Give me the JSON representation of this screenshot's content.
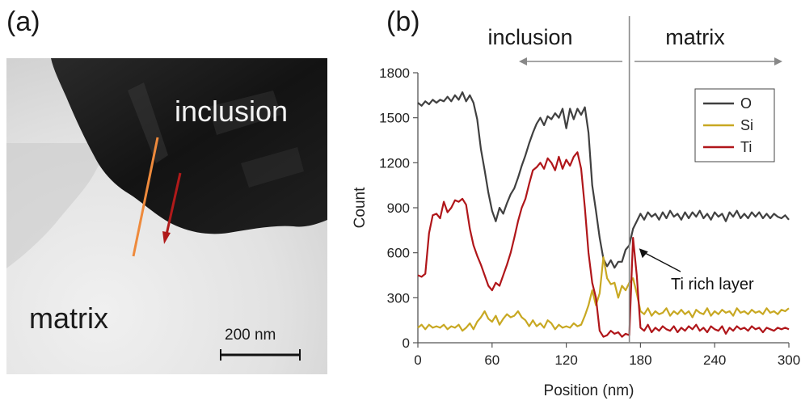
{
  "panels": {
    "a_label": "(a)",
    "b_label": "(b)"
  },
  "micrograph": {
    "inclusion_label": "inclusion",
    "matrix_label": "matrix",
    "scalebar_label": "200 nm",
    "colors": {
      "inclusion": "#161616",
      "matrix": "#e4e4e4",
      "orange_line": "#ee8a3c",
      "red_arrow": "#b01a1a"
    }
  },
  "chart_data": {
    "type": "line",
    "xlabel": "Position (nm)",
    "ylabel": "Count",
    "xlim": [
      0,
      300
    ],
    "ylim": [
      0,
      1800
    ],
    "x_ticks": [
      0,
      60,
      120,
      180,
      240,
      300
    ],
    "y_ticks": [
      0,
      300,
      600,
      900,
      1200,
      1500,
      1800
    ],
    "grid": false,
    "legend_position": "top-right",
    "boundary_x": 171,
    "region_labels": {
      "left": "inclusion",
      "right": "matrix"
    },
    "annotation": {
      "text": "Ti rich layer",
      "x": 175,
      "y": 640
    },
    "series": [
      {
        "name": "O",
        "color": "#404040",
        "points": [
          [
            0,
            1600
          ],
          [
            3,
            1580
          ],
          [
            6,
            1610
          ],
          [
            9,
            1590
          ],
          [
            12,
            1620
          ],
          [
            15,
            1600
          ],
          [
            18,
            1620
          ],
          [
            21,
            1610
          ],
          [
            24,
            1640
          ],
          [
            27,
            1610
          ],
          [
            30,
            1650
          ],
          [
            33,
            1620
          ],
          [
            36,
            1670
          ],
          [
            39,
            1610
          ],
          [
            42,
            1650
          ],
          [
            45,
            1600
          ],
          [
            48,
            1490
          ],
          [
            51,
            1290
          ],
          [
            54,
            1150
          ],
          [
            57,
            1000
          ],
          [
            60,
            880
          ],
          [
            63,
            810
          ],
          [
            66,
            900
          ],
          [
            69,
            860
          ],
          [
            72,
            930
          ],
          [
            75,
            990
          ],
          [
            78,
            1030
          ],
          [
            81,
            1100
          ],
          [
            84,
            1180
          ],
          [
            87,
            1250
          ],
          [
            90,
            1330
          ],
          [
            93,
            1400
          ],
          [
            96,
            1460
          ],
          [
            99,
            1500
          ],
          [
            102,
            1450
          ],
          [
            105,
            1510
          ],
          [
            108,
            1490
          ],
          [
            111,
            1530
          ],
          [
            114,
            1500
          ],
          [
            117,
            1560
          ],
          [
            120,
            1430
          ],
          [
            123,
            1560
          ],
          [
            126,
            1490
          ],
          [
            129,
            1560
          ],
          [
            132,
            1520
          ],
          [
            135,
            1570
          ],
          [
            138,
            1400
          ],
          [
            141,
            1050
          ],
          [
            144,
            880
          ],
          [
            147,
            700
          ],
          [
            150,
            560
          ],
          [
            153,
            510
          ],
          [
            156,
            550
          ],
          [
            159,
            500
          ],
          [
            162,
            540
          ],
          [
            165,
            540
          ],
          [
            168,
            620
          ],
          [
            171,
            650
          ],
          [
            174,
            760
          ],
          [
            177,
            810
          ],
          [
            180,
            860
          ],
          [
            183,
            820
          ],
          [
            186,
            870
          ],
          [
            189,
            840
          ],
          [
            192,
            860
          ],
          [
            195,
            820
          ],
          [
            198,
            870
          ],
          [
            201,
            830
          ],
          [
            204,
            880
          ],
          [
            207,
            840
          ],
          [
            210,
            860
          ],
          [
            213,
            820
          ],
          [
            216,
            870
          ],
          [
            219,
            830
          ],
          [
            222,
            870
          ],
          [
            225,
            840
          ],
          [
            228,
            880
          ],
          [
            231,
            830
          ],
          [
            234,
            860
          ],
          [
            237,
            820
          ],
          [
            240,
            870
          ],
          [
            243,
            840
          ],
          [
            246,
            860
          ],
          [
            249,
            810
          ],
          [
            252,
            870
          ],
          [
            255,
            840
          ],
          [
            258,
            880
          ],
          [
            261,
            830
          ],
          [
            264,
            860
          ],
          [
            267,
            830
          ],
          [
            270,
            870
          ],
          [
            273,
            840
          ],
          [
            276,
            870
          ],
          [
            279,
            830
          ],
          [
            282,
            860
          ],
          [
            285,
            830
          ],
          [
            288,
            860
          ],
          [
            291,
            840
          ],
          [
            294,
            830
          ],
          [
            297,
            850
          ],
          [
            300,
            820
          ]
        ]
      },
      {
        "name": "Si",
        "color": "#c8a822",
        "points": [
          [
            0,
            100
          ],
          [
            3,
            120
          ],
          [
            6,
            90
          ],
          [
            9,
            120
          ],
          [
            12,
            100
          ],
          [
            15,
            110
          ],
          [
            18,
            100
          ],
          [
            21,
            120
          ],
          [
            24,
            90
          ],
          [
            27,
            110
          ],
          [
            30,
            100
          ],
          [
            33,
            120
          ],
          [
            36,
            80
          ],
          [
            39,
            100
          ],
          [
            42,
            130
          ],
          [
            45,
            90
          ],
          [
            48,
            140
          ],
          [
            51,
            170
          ],
          [
            54,
            210
          ],
          [
            57,
            160
          ],
          [
            60,
            140
          ],
          [
            63,
            180
          ],
          [
            66,
            120
          ],
          [
            69,
            160
          ],
          [
            72,
            190
          ],
          [
            75,
            170
          ],
          [
            78,
            180
          ],
          [
            81,
            210
          ],
          [
            84,
            170
          ],
          [
            87,
            150
          ],
          [
            90,
            110
          ],
          [
            93,
            150
          ],
          [
            96,
            110
          ],
          [
            99,
            130
          ],
          [
            102,
            100
          ],
          [
            105,
            150
          ],
          [
            108,
            130
          ],
          [
            111,
            90
          ],
          [
            114,
            120
          ],
          [
            117,
            100
          ],
          [
            120,
            110
          ],
          [
            123,
            100
          ],
          [
            126,
            130
          ],
          [
            129,
            110
          ],
          [
            132,
            120
          ],
          [
            135,
            180
          ],
          [
            138,
            250
          ],
          [
            141,
            350
          ],
          [
            144,
            250
          ],
          [
            147,
            330
          ],
          [
            150,
            570
          ],
          [
            153,
            430
          ],
          [
            156,
            390
          ],
          [
            159,
            400
          ],
          [
            162,
            300
          ],
          [
            165,
            380
          ],
          [
            168,
            350
          ],
          [
            171,
            400
          ],
          [
            174,
            430
          ],
          [
            177,
            330
          ],
          [
            180,
            210
          ],
          [
            183,
            190
          ],
          [
            186,
            230
          ],
          [
            189,
            180
          ],
          [
            192,
            210
          ],
          [
            195,
            190
          ],
          [
            198,
            200
          ],
          [
            201,
            230
          ],
          [
            204,
            180
          ],
          [
            207,
            210
          ],
          [
            210,
            190
          ],
          [
            213,
            220
          ],
          [
            216,
            190
          ],
          [
            219,
            210
          ],
          [
            222,
            170
          ],
          [
            225,
            220
          ],
          [
            228,
            200
          ],
          [
            231,
            190
          ],
          [
            234,
            230
          ],
          [
            237,
            180
          ],
          [
            240,
            210
          ],
          [
            243,
            190
          ],
          [
            246,
            220
          ],
          [
            249,
            200
          ],
          [
            252,
            210
          ],
          [
            255,
            180
          ],
          [
            258,
            230
          ],
          [
            261,
            200
          ],
          [
            264,
            210
          ],
          [
            267,
            190
          ],
          [
            270,
            220
          ],
          [
            273,
            200
          ],
          [
            276,
            210
          ],
          [
            279,
            190
          ],
          [
            282,
            230
          ],
          [
            285,
            200
          ],
          [
            288,
            210
          ],
          [
            291,
            190
          ],
          [
            294,
            220
          ],
          [
            297,
            210
          ],
          [
            300,
            230
          ]
        ]
      },
      {
        "name": "Ti",
        "color": "#b0161a",
        "points": [
          [
            0,
            450
          ],
          [
            3,
            440
          ],
          [
            6,
            460
          ],
          [
            9,
            730
          ],
          [
            12,
            850
          ],
          [
            15,
            860
          ],
          [
            18,
            830
          ],
          [
            21,
            940
          ],
          [
            24,
            870
          ],
          [
            27,
            900
          ],
          [
            30,
            950
          ],
          [
            33,
            940
          ],
          [
            36,
            960
          ],
          [
            39,
            920
          ],
          [
            42,
            760
          ],
          [
            45,
            650
          ],
          [
            48,
            580
          ],
          [
            51,
            520
          ],
          [
            54,
            450
          ],
          [
            57,
            380
          ],
          [
            60,
            350
          ],
          [
            63,
            400
          ],
          [
            66,
            380
          ],
          [
            69,
            450
          ],
          [
            72,
            520
          ],
          [
            75,
            600
          ],
          [
            78,
            700
          ],
          [
            81,
            810
          ],
          [
            84,
            900
          ],
          [
            87,
            960
          ],
          [
            90,
            1060
          ],
          [
            93,
            1150
          ],
          [
            96,
            1170
          ],
          [
            99,
            1200
          ],
          [
            102,
            1160
          ],
          [
            105,
            1230
          ],
          [
            108,
            1200
          ],
          [
            111,
            1150
          ],
          [
            114,
            1240
          ],
          [
            117,
            1160
          ],
          [
            120,
            1220
          ],
          [
            123,
            1180
          ],
          [
            126,
            1240
          ],
          [
            129,
            1270
          ],
          [
            132,
            1160
          ],
          [
            135,
            900
          ],
          [
            138,
            600
          ],
          [
            141,
            400
          ],
          [
            144,
            300
          ],
          [
            147,
            80
          ],
          [
            150,
            40
          ],
          [
            153,
            50
          ],
          [
            156,
            80
          ],
          [
            159,
            60
          ],
          [
            162,
            70
          ],
          [
            165,
            40
          ],
          [
            168,
            60
          ],
          [
            171,
            50
          ],
          [
            174,
            700
          ],
          [
            177,
            450
          ],
          [
            180,
            100
          ],
          [
            183,
            80
          ],
          [
            186,
            120
          ],
          [
            189,
            70
          ],
          [
            192,
            100
          ],
          [
            195,
            80
          ],
          [
            198,
            110
          ],
          [
            201,
            90
          ],
          [
            204,
            80
          ],
          [
            207,
            110
          ],
          [
            210,
            70
          ],
          [
            213,
            100
          ],
          [
            216,
            80
          ],
          [
            219,
            110
          ],
          [
            222,
            90
          ],
          [
            225,
            120
          ],
          [
            228,
            80
          ],
          [
            231,
            100
          ],
          [
            234,
            70
          ],
          [
            237,
            110
          ],
          [
            240,
            90
          ],
          [
            243,
            80
          ],
          [
            246,
            110
          ],
          [
            249,
            60
          ],
          [
            252,
            100
          ],
          [
            255,
            80
          ],
          [
            258,
            110
          ],
          [
            261,
            90
          ],
          [
            264,
            100
          ],
          [
            267,
            80
          ],
          [
            270,
            110
          ],
          [
            273,
            90
          ],
          [
            276,
            100
          ],
          [
            279,
            70
          ],
          [
            282,
            100
          ],
          [
            285,
            90
          ],
          [
            288,
            80
          ],
          [
            291,
            100
          ],
          [
            294,
            90
          ],
          [
            297,
            100
          ],
          [
            300,
            90
          ]
        ]
      }
    ]
  }
}
